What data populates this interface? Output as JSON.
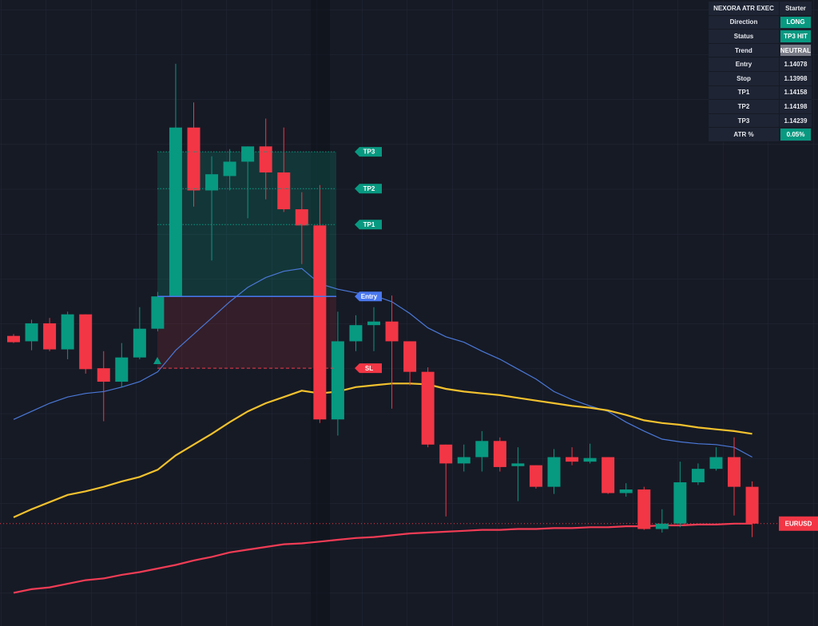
{
  "panel": {
    "title": "NEXORA ATR EXEC",
    "plan": "Starter",
    "rows": [
      {
        "label": "Direction",
        "value": "LONG",
        "color": "#089981"
      },
      {
        "label": "Status",
        "value": "TP3 HIT",
        "color": "#089981"
      },
      {
        "label": "Trend",
        "value": "NEUTRAL",
        "color": "#787b86"
      },
      {
        "label": "Entry",
        "value": 1.14078
      },
      {
        "label": "Stop",
        "value": 1.13998
      },
      {
        "label": "TP1",
        "value": 1.14158
      },
      {
        "label": "TP2",
        "value": 1.14198
      },
      {
        "label": "TP3",
        "value": 1.14239
      },
      {
        "label": "ATR %",
        "value": "0.05%",
        "color": "#089981"
      }
    ]
  },
  "chart_data": {
    "type": "candlestick",
    "symbol": "EURUSD",
    "ylim": [
      1.13711,
      1.14408
    ],
    "up_color": "#089981",
    "down_color": "#f23645",
    "open": [
      1.14034,
      1.14028,
      1.14048,
      1.14019,
      1.14058,
      1.13998,
      1.13983,
      1.1401,
      1.14042,
      1.14078,
      1.14266,
      1.14196,
      1.14212,
      1.14228,
      1.14245,
      1.14216,
      1.14175,
      1.14157,
      1.13941,
      1.14028,
      1.14046,
      1.1405,
      1.14028,
      1.13994,
      1.13913,
      1.13892,
      1.13899,
      1.13917,
      1.13889,
      1.1389,
      1.13866,
      1.13899,
      1.13894,
      1.13899,
      1.13859,
      1.13863,
      1.13819,
      1.13825,
      1.13871,
      1.13886,
      1.13899,
      1.13866
    ],
    "high": [
      1.14036,
      1.14052,
      1.14054,
      1.14061,
      1.14058,
      1.14017,
      1.14026,
      1.14066,
      1.14083,
      1.14337,
      1.14294,
      1.14234,
      1.14242,
      1.14245,
      1.14276,
      1.14266,
      1.14194,
      1.14202,
      1.14061,
      1.14057,
      1.14066,
      1.14079,
      1.14028,
      1.13999,
      1.13913,
      1.13913,
      1.13928,
      1.13921,
      1.1391,
      1.1389,
      1.13908,
      1.1391,
      1.13914,
      1.13899,
      1.1387,
      1.13866,
      1.13841,
      1.13894,
      1.13892,
      1.1391,
      1.13921,
      1.13872
    ],
    "low": [
      1.14026,
      1.14018,
      1.14017,
      1.14008,
      1.13992,
      1.13939,
      1.13977,
      1.14008,
      1.14039,
      1.14078,
      1.14178,
      1.14118,
      1.14196,
      1.14165,
      1.14186,
      1.14172,
      1.14114,
      1.13937,
      1.13923,
      1.14017,
      1.14017,
      1.13953,
      1.13979,
      1.1391,
      1.13833,
      1.13883,
      1.13883,
      1.13883,
      1.1385,
      1.13864,
      1.13858,
      1.1389,
      1.13892,
      1.13858,
      1.13855,
      1.13818,
      1.13815,
      1.13821,
      1.13868,
      1.13884,
      1.13834,
      1.1381
    ],
    "close": [
      1.14027,
      1.14048,
      1.14019,
      1.14058,
      1.13997,
      1.13983,
      1.1401,
      1.14042,
      1.14078,
      1.14266,
      1.14196,
      1.14214,
      1.14228,
      1.14245,
      1.14216,
      1.14175,
      1.14157,
      1.13941,
      1.14028,
      1.14046,
      1.1405,
      1.14028,
      1.13994,
      1.13913,
      1.13892,
      1.13899,
      1.13917,
      1.13888,
      1.13892,
      1.13866,
      1.13899,
      1.13894,
      1.13898,
      1.13859,
      1.13863,
      1.13819,
      1.13825,
      1.13871,
      1.13886,
      1.13899,
      1.13866,
      1.13825
    ],
    "series": [
      {
        "color": "#4a78d8",
        "values": [
          1.13941,
          1.1395,
          1.13959,
          1.13966,
          1.1397,
          1.13972,
          1.13977,
          1.13983,
          1.13994,
          1.14018,
          1.14036,
          1.14054,
          1.14072,
          1.14088,
          1.14099,
          1.14106,
          1.14109,
          1.14092,
          1.14086,
          1.14082,
          1.14079,
          1.14072,
          1.14059,
          1.14043,
          1.14033,
          1.14027,
          1.14017,
          1.14008,
          1.13997,
          1.13986,
          1.13972,
          1.13963,
          1.13956,
          1.1395,
          1.13938,
          1.13928,
          1.13919,
          1.13916,
          1.13914,
          1.13913,
          1.1391,
          1.13899
        ]
      },
      {
        "color": "#f2c12e",
        "values": [
          1.13832,
          1.13841,
          1.13849,
          1.13857,
          1.13861,
          1.13866,
          1.13872,
          1.13877,
          1.13885,
          1.13901,
          1.13913,
          1.13925,
          1.13938,
          1.1395,
          1.13959,
          1.13966,
          1.13973,
          1.1397,
          1.13972,
          1.13977,
          1.13979,
          1.13981,
          1.13981,
          1.1398,
          1.13975,
          1.13972,
          1.1397,
          1.13968,
          1.13965,
          1.13962,
          1.13959,
          1.13956,
          1.13954,
          1.13951,
          1.13946,
          1.1394,
          1.13937,
          1.13935,
          1.13932,
          1.1393,
          1.13928,
          1.13925
        ]
      },
      {
        "color": "#f23c55",
        "values": [
          1.13748,
          1.13752,
          1.13754,
          1.13758,
          1.13762,
          1.13764,
          1.13768,
          1.13771,
          1.13775,
          1.13779,
          1.13784,
          1.13788,
          1.13793,
          1.13796,
          1.13799,
          1.13802,
          1.13803,
          1.13805,
          1.13807,
          1.13809,
          1.1381,
          1.13812,
          1.13814,
          1.13815,
          1.13816,
          1.13817,
          1.13818,
          1.13818,
          1.13819,
          1.13819,
          1.1382,
          1.1382,
          1.13821,
          1.13821,
          1.13822,
          1.13822,
          1.13823,
          1.13823,
          1.13824,
          1.13824,
          1.13825,
          1.13825
        ]
      }
    ],
    "levels": [
      {
        "label": "TP3",
        "value": 1.14239,
        "color": "#089981"
      },
      {
        "label": "TP2",
        "value": 1.14198,
        "color": "#089981"
      },
      {
        "label": "TP1",
        "value": 1.14158,
        "color": "#089981"
      },
      {
        "label": "Entry",
        "value": 1.14078,
        "color": "#4a78f0"
      },
      {
        "label": "SL",
        "value": 1.13998,
        "color": "#f23645"
      }
    ]
  }
}
